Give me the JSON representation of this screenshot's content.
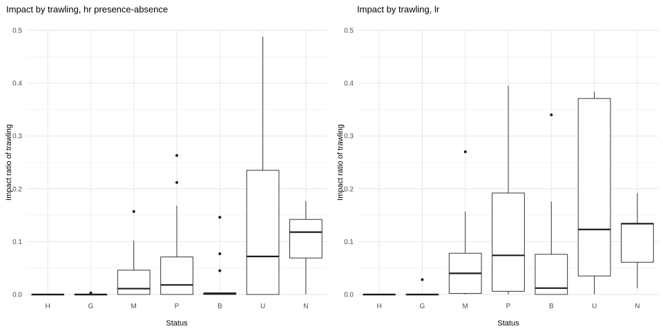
{
  "chart_data": [
    {
      "type": "boxplot",
      "title": "Impact by trawling, hr presence-absence",
      "xlabel": "Status",
      "ylabel": "Impact ratio of trawling",
      "ylim": [
        0,
        0.5
      ],
      "ytick_labels": [
        "0.0",
        "0.1",
        "0.2",
        "0.3",
        "0.4",
        "0.5"
      ],
      "grid": true,
      "categories": [
        "H",
        "G",
        "M",
        "P",
        "B",
        "U",
        "N"
      ],
      "boxes": [
        {
          "category": "H",
          "min": 0,
          "q1": 0,
          "median": 0,
          "q3": 0,
          "max": 0,
          "outliers": []
        },
        {
          "category": "G",
          "min": 0,
          "q1": 0,
          "median": 0,
          "q3": 0,
          "max": 0,
          "outliers": [
            0.003
          ]
        },
        {
          "category": "M",
          "min": 0,
          "q1": 0,
          "median": 0.011,
          "q3": 0.046,
          "max": 0.102,
          "outliers": [
            0.157
          ]
        },
        {
          "category": "P",
          "min": 0,
          "q1": 0,
          "median": 0.018,
          "q3": 0.071,
          "max": 0.168,
          "outliers": [
            0.212,
            0.263
          ]
        },
        {
          "category": "B",
          "min": 0,
          "q1": 0,
          "median": 0.002,
          "q3": 0.003,
          "max": 0.003,
          "outliers": [
            0.045,
            0.077,
            0.146
          ]
        },
        {
          "category": "U",
          "min": 0,
          "q1": 0,
          "median": 0.072,
          "q3": 0.235,
          "max": 0.488,
          "outliers": []
        },
        {
          "category": "N",
          "min": 0,
          "q1": 0.069,
          "median": 0.118,
          "q3": 0.142,
          "max": 0.177,
          "outliers": []
        }
      ]
    },
    {
      "type": "boxplot",
      "title": "Impact by trawling, lr",
      "xlabel": "Status",
      "ylabel": "Impact ratio of trawling",
      "ylim": [
        0,
        0.5
      ],
      "ytick_labels": [
        "0.0",
        "0.1",
        "0.2",
        "0.3",
        "0.4",
        "0.5"
      ],
      "grid": true,
      "categories": [
        "H",
        "G",
        "M",
        "P",
        "B",
        "U",
        "N"
      ],
      "boxes": [
        {
          "category": "H",
          "min": 0,
          "q1": 0,
          "median": 0,
          "q3": 0,
          "max": 0,
          "outliers": []
        },
        {
          "category": "G",
          "min": 0,
          "q1": 0,
          "median": 0,
          "q3": 0,
          "max": 0,
          "outliers": [
            0.028
          ]
        },
        {
          "category": "M",
          "min": 0,
          "q1": 0.002,
          "median": 0.04,
          "q3": 0.078,
          "max": 0.157,
          "outliers": [
            0.27
          ]
        },
        {
          "category": "P",
          "min": 0,
          "q1": 0.006,
          "median": 0.074,
          "q3": 0.192,
          "max": 0.395,
          "outliers": []
        },
        {
          "category": "B",
          "min": 0,
          "q1": 0,
          "median": 0.012,
          "q3": 0.076,
          "max": 0.176,
          "outliers": [
            0.34
          ]
        },
        {
          "category": "U",
          "min": 0,
          "q1": 0.035,
          "median": 0.123,
          "q3": 0.371,
          "max": 0.384,
          "outliers": []
        },
        {
          "category": "N",
          "min": 0.012,
          "q1": 0.061,
          "median": 0.134,
          "q3": 0.134,
          "max": 0.192,
          "outliers": []
        }
      ]
    }
  ]
}
